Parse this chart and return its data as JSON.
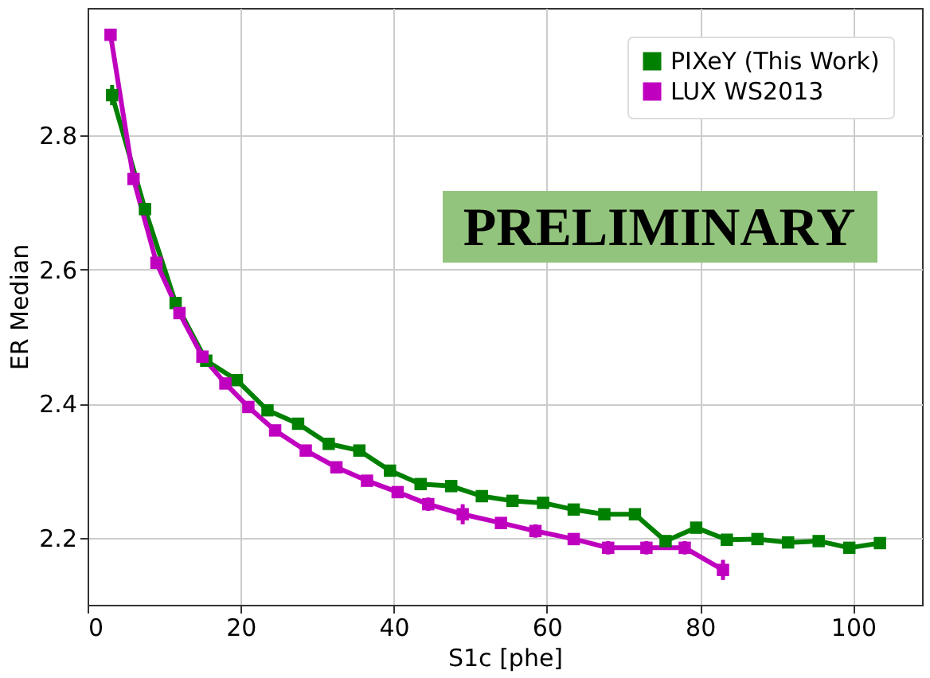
{
  "chart_data": {
    "type": "line",
    "xlabel": "S1c [phe]",
    "ylabel": "ER Median",
    "xlim": [
      0,
      109
    ],
    "ylim": [
      2.1,
      2.99
    ],
    "xticks": [
      0,
      20,
      40,
      60,
      80,
      100
    ],
    "yticks": [
      2.2,
      2.4,
      2.6,
      2.8
    ],
    "grid": true,
    "legend": "top right",
    "marker": "square",
    "line_style": "solid",
    "annotations": [
      "PRELIMINARY"
    ],
    "series": [
      {
        "name": "PIXeY (This Work)",
        "color": "#008000",
        "x": [
          3.2,
          7.5,
          11.5,
          15.5,
          19.5,
          23.5,
          27.5,
          31.5,
          35.5,
          39.5,
          43.5,
          47.5,
          51.5,
          55.5,
          59.5,
          63.5,
          67.5,
          71.5,
          75.5,
          79.5,
          83.5,
          87.5,
          91.5,
          95.5,
          99.5,
          103.5
        ],
        "values": [
          2.86,
          2.69,
          2.55,
          2.464,
          2.435,
          2.39,
          2.37,
          2.34,
          2.33,
          2.3,
          2.28,
          2.277,
          2.262,
          2.255,
          2.252,
          2.242,
          2.235,
          2.235,
          2.195,
          2.215,
          2.197,
          2.198,
          2.193,
          2.195,
          2.185,
          2.192
        ],
        "errors": [
          0.015,
          0.008,
          0.008,
          0.005,
          0.005,
          0.005,
          0.008,
          0.005,
          0.008,
          0.005,
          0.005,
          0.005,
          0.005,
          0.005,
          0.005,
          0.005,
          0.005,
          0.005,
          0.008,
          0.005,
          0.005,
          0.005,
          0.005,
          0.005,
          0.005,
          0.005
        ]
      },
      {
        "name": "LUX WS2013",
        "color": "#bf00bf",
        "x": [
          3,
          6,
          9,
          12,
          15,
          18,
          21,
          24.5,
          28.5,
          32.5,
          36.5,
          40.5,
          44.5,
          49,
          54,
          58.5,
          63.5,
          68,
          73,
          78,
          83
        ],
        "values": [
          2.95,
          2.735,
          2.61,
          2.535,
          2.47,
          2.43,
          2.395,
          2.36,
          2.33,
          2.305,
          2.285,
          2.268,
          2.25,
          2.235,
          2.222,
          2.21,
          2.198,
          2.185,
          2.185,
          2.185,
          2.152
        ],
        "errors": [
          0.005,
          0.005,
          0.005,
          0.005,
          0.005,
          0.005,
          0.005,
          0.005,
          0.005,
          0.005,
          0.005,
          0.008,
          0.01,
          0.015,
          0.005,
          0.01,
          0.008,
          0.01,
          0.01,
          0.01,
          0.015
        ]
      }
    ]
  }
}
